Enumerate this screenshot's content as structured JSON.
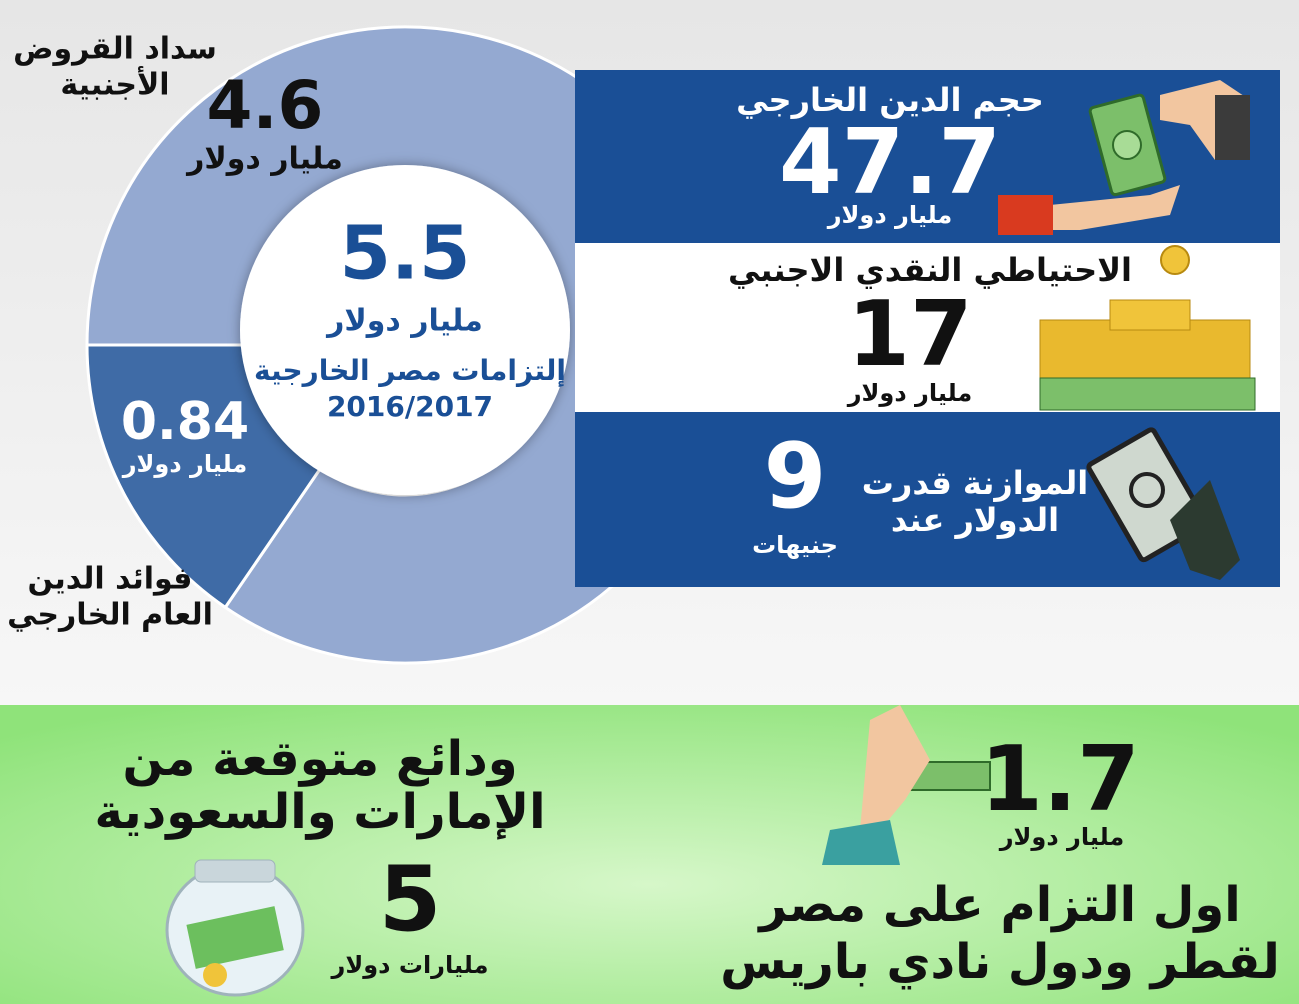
{
  "donut": {
    "center_value": 5.5,
    "center_unit": "مليار دولار",
    "center_title": "إلتزامات مصر الخارجية",
    "center_period": "2016/2017",
    "segments": [
      {
        "label": [
          "سداد القروض",
          "الأجنبية"
        ],
        "value": 4.6,
        "unit": "مليار دولار",
        "color": "#94a9d1"
      },
      {
        "label": [
          "فوائد الدين",
          "العام الخارجي"
        ],
        "value": 0.84,
        "unit": "مليار دولار",
        "color": "#3f6ba6"
      }
    ]
  },
  "panels": [
    {
      "title": [
        "حجم الدين الخارجي"
      ],
      "value": 47.7,
      "unit": "مليار دولار"
    },
    {
      "title": [
        "الاحتياطي النقدي الاجنبي"
      ],
      "value": 17,
      "unit": "مليار دولار"
    },
    {
      "title": [
        "الموازنة قدرت",
        "الدولار عند"
      ],
      "value": 9,
      "unit": "جنيهات"
    }
  ],
  "bottom": [
    {
      "title": [
        "ودائع متوقعة من",
        "الإمارات والسعودية"
      ],
      "value": 5,
      "unit": "مليارات دولار"
    },
    {
      "title": [
        "اول التزام على مصر",
        "لقطر ودول نادي باريس"
      ],
      "value": 1.7,
      "unit": "مليار دولار"
    }
  ]
}
